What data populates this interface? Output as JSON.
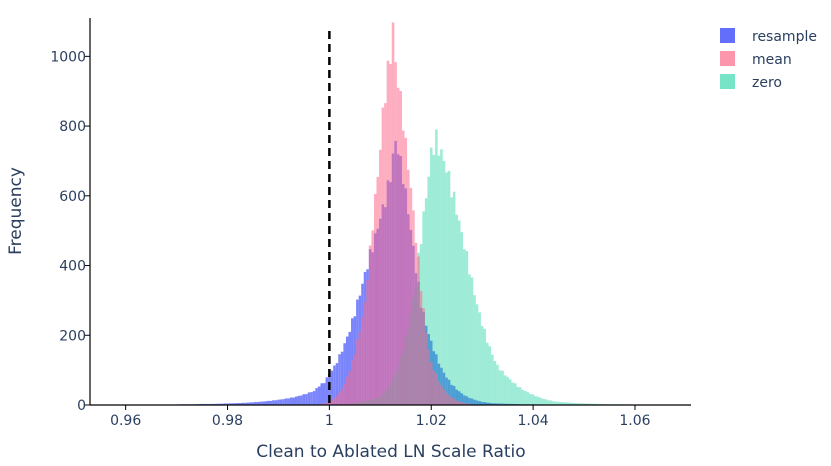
{
  "chart_data": {
    "type": "histogram",
    "xlabel": "Clean to Ablated LN Scale Ratio",
    "ylabel": "Frequency",
    "xlim": [
      0.953,
      1.071
    ],
    "ylim": [
      0,
      1110
    ],
    "x_ticks": [
      0.96,
      0.98,
      1,
      1.02,
      1.04,
      1.06
    ],
    "x_tick_labels": [
      "0.96",
      "0.98",
      "1",
      "1.02",
      "1.04",
      "1.06"
    ],
    "y_ticks": [
      0,
      200,
      400,
      600,
      800,
      1000
    ],
    "y_tick_labels": [
      "0",
      "200",
      "400",
      "600",
      "800",
      "1000"
    ],
    "reference_line": {
      "x": 1.0,
      "style": "dashed",
      "color": "#000000"
    },
    "bin_width": 0.0005,
    "legend_position": "top-right",
    "grid": false,
    "series": [
      {
        "name": "resample",
        "color": "#636efa",
        "opacity": 0.85,
        "bins": [
          [
            0.965,
            1
          ],
          [
            0.967,
            1
          ],
          [
            0.969,
            1
          ],
          [
            0.971,
            2
          ],
          [
            0.973,
            2
          ],
          [
            0.975,
            3
          ],
          [
            0.977,
            3
          ],
          [
            0.979,
            4
          ],
          [
            0.981,
            5
          ],
          [
            0.983,
            6
          ],
          [
            0.985,
            8
          ],
          [
            0.987,
            10
          ],
          [
            0.989,
            13
          ],
          [
            0.991,
            17
          ],
          [
            0.993,
            22
          ],
          [
            0.995,
            30
          ],
          [
            0.997,
            40
          ],
          [
            0.998,
            55
          ],
          [
            0.999,
            65
          ],
          [
            1.0,
            90
          ],
          [
            1.001,
            110
          ],
          [
            1.002,
            140
          ],
          [
            1.003,
            175
          ],
          [
            1.004,
            215
          ],
          [
            1.005,
            265
          ],
          [
            1.006,
            320
          ],
          [
            1.007,
            375
          ],
          [
            1.008,
            430
          ],
          [
            1.009,
            480
          ],
          [
            1.0095,
            510
          ],
          [
            1.01,
            540
          ],
          [
            1.0105,
            560
          ],
          [
            1.011,
            590
          ],
          [
            1.0115,
            620
          ],
          [
            1.012,
            660
          ],
          [
            1.0125,
            710
          ],
          [
            1.013,
            755
          ],
          [
            1.0135,
            735
          ],
          [
            1.014,
            690
          ],
          [
            1.0145,
            660
          ],
          [
            1.015,
            600
          ],
          [
            1.0155,
            560
          ],
          [
            1.016,
            500
          ],
          [
            1.0165,
            450
          ],
          [
            1.017,
            390
          ],
          [
            1.0175,
            340
          ],
          [
            1.018,
            290
          ],
          [
            1.019,
            230
          ],
          [
            1.02,
            180
          ],
          [
            1.021,
            140
          ],
          [
            1.022,
            105
          ],
          [
            1.023,
            80
          ],
          [
            1.024,
            60
          ],
          [
            1.025,
            45
          ],
          [
            1.026,
            33
          ],
          [
            1.027,
            24
          ],
          [
            1.028,
            18
          ],
          [
            1.029,
            13
          ],
          [
            1.03,
            9
          ],
          [
            1.031,
            7
          ],
          [
            1.032,
            5
          ],
          [
            1.034,
            4
          ],
          [
            1.036,
            3
          ],
          [
            1.038,
            2
          ],
          [
            1.04,
            2
          ],
          [
            1.042,
            1
          ],
          [
            1.044,
            1
          ]
        ]
      },
      {
        "name": "mean",
        "color": "#ef553b",
        "opacity": 0.55,
        "fill_override": "#fb6a8a",
        "bins": [
          [
            0.998,
            2
          ],
          [
            0.999,
            5
          ],
          [
            1.0,
            10
          ],
          [
            1.001,
            20
          ],
          [
            1.002,
            35
          ],
          [
            1.003,
            60
          ],
          [
            1.004,
            100
          ],
          [
            1.005,
            150
          ],
          [
            1.006,
            215
          ],
          [
            1.007,
            290
          ],
          [
            1.0075,
            370
          ],
          [
            1.008,
            440
          ],
          [
            1.0085,
            520
          ],
          [
            1.009,
            590
          ],
          [
            1.0095,
            660
          ],
          [
            1.01,
            740
          ],
          [
            1.0105,
            830
          ],
          [
            1.011,
            900
          ],
          [
            1.0115,
            950
          ],
          [
            1.012,
            1010
          ],
          [
            1.0125,
            1080
          ],
          [
            1.013,
            980
          ],
          [
            1.0135,
            930
          ],
          [
            1.014,
            870
          ],
          [
            1.0145,
            820
          ],
          [
            1.015,
            740
          ],
          [
            1.0155,
            690
          ],
          [
            1.016,
            620
          ],
          [
            1.0165,
            550
          ],
          [
            1.017,
            480
          ],
          [
            1.0175,
            410
          ],
          [
            1.018,
            340
          ],
          [
            1.0185,
            270
          ],
          [
            1.019,
            210
          ],
          [
            1.0195,
            160
          ],
          [
            1.02,
            120
          ],
          [
            1.021,
            85
          ],
          [
            1.022,
            55
          ],
          [
            1.023,
            35
          ],
          [
            1.024,
            22
          ],
          [
            1.025,
            13
          ],
          [
            1.026,
            8
          ],
          [
            1.027,
            4
          ],
          [
            1.028,
            2
          ]
        ]
      },
      {
        "name": "zero",
        "color": "#00cc96",
        "opacity": 0.38,
        "bins": [
          [
            1.0,
            1
          ],
          [
            1.002,
            2
          ],
          [
            1.004,
            4
          ],
          [
            1.006,
            8
          ],
          [
            1.008,
            14
          ],
          [
            1.01,
            25
          ],
          [
            1.011,
            40
          ],
          [
            1.012,
            60
          ],
          [
            1.013,
            90
          ],
          [
            1.014,
            135
          ],
          [
            1.015,
            190
          ],
          [
            1.016,
            260
          ],
          [
            1.017,
            350
          ],
          [
            1.0175,
            420
          ],
          [
            1.018,
            480
          ],
          [
            1.0185,
            540
          ],
          [
            1.019,
            600
          ],
          [
            1.0195,
            660
          ],
          [
            1.02,
            720
          ],
          [
            1.0205,
            745
          ],
          [
            1.021,
            760
          ],
          [
            1.0215,
            740
          ],
          [
            1.022,
            720
          ],
          [
            1.0225,
            700
          ],
          [
            1.023,
            680
          ],
          [
            1.0235,
            650
          ],
          [
            1.024,
            620
          ],
          [
            1.0245,
            590
          ],
          [
            1.025,
            560
          ],
          [
            1.0255,
            525
          ],
          [
            1.026,
            490
          ],
          [
            1.0265,
            460
          ],
          [
            1.027,
            425
          ],
          [
            1.0275,
            390
          ],
          [
            1.028,
            355
          ],
          [
            1.0285,
            320
          ],
          [
            1.029,
            290
          ],
          [
            1.0295,
            260
          ],
          [
            1.03,
            235
          ],
          [
            1.0305,
            210
          ],
          [
            1.031,
            185
          ],
          [
            1.0315,
            165
          ],
          [
            1.032,
            145
          ],
          [
            1.0325,
            128
          ],
          [
            1.033,
            112
          ],
          [
            1.034,
            95
          ],
          [
            1.035,
            80
          ],
          [
            1.036,
            66
          ],
          [
            1.037,
            54
          ],
          [
            1.038,
            44
          ],
          [
            1.039,
            36
          ],
          [
            1.04,
            29
          ],
          [
            1.041,
            23
          ],
          [
            1.042,
            18
          ],
          [
            1.043,
            14
          ],
          [
            1.044,
            11
          ],
          [
            1.045,
            9
          ],
          [
            1.047,
            7
          ],
          [
            1.049,
            5
          ],
          [
            1.051,
            4
          ],
          [
            1.053,
            3
          ],
          [
            1.055,
            2
          ],
          [
            1.058,
            2
          ],
          [
            1.061,
            1
          ],
          [
            1.064,
            1
          ]
        ]
      }
    ]
  }
}
